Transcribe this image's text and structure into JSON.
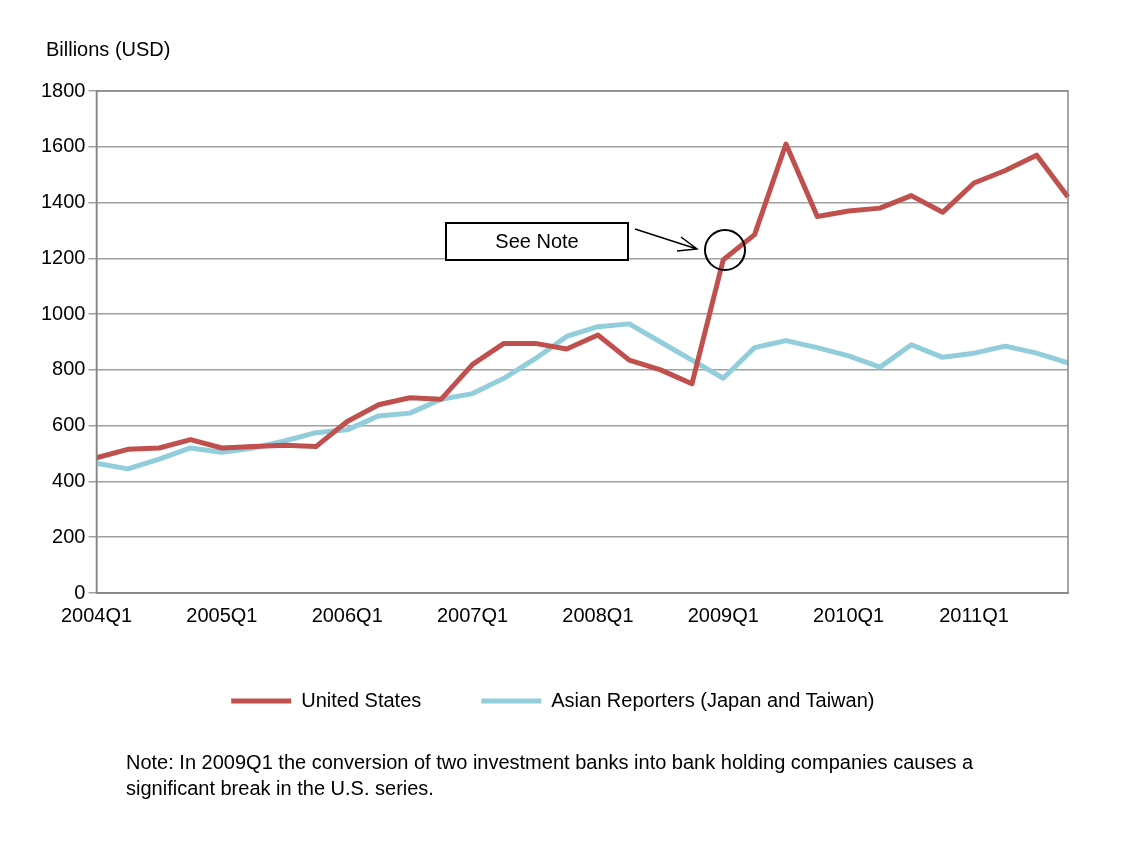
{
  "chart_data": {
    "type": "line",
    "ylabel": "Billions (USD)",
    "categories": [
      "2004Q1",
      null,
      null,
      null,
      "2005Q1",
      null,
      null,
      null,
      "2006Q1",
      null,
      null,
      null,
      "2007Q1",
      null,
      null,
      null,
      "2008Q1",
      null,
      null,
      null,
      "2009Q1",
      null,
      null,
      null,
      "2010Q1",
      null,
      null,
      null,
      "2011Q1",
      null,
      null,
      null
    ],
    "series": [
      {
        "name": "United States",
        "color": "#c0504d",
        "values": [
          485,
          515,
          520,
          550,
          520,
          525,
          530,
          525,
          615,
          675,
          700,
          695,
          820,
          895,
          895,
          875,
          925,
          835,
          800,
          750,
          1195,
          1285,
          1610,
          1350,
          1370,
          1380,
          1425,
          1365,
          1470,
          1515,
          1570,
          1420
        ]
      },
      {
        "name": "Asian Reporters (Japan and Taiwan)",
        "color": "#92cddc",
        "values": [
          465,
          445,
          480,
          520,
          505,
          520,
          545,
          575,
          585,
          635,
          645,
          695,
          715,
          770,
          840,
          920,
          955,
          965,
          900,
          835,
          770,
          880,
          905,
          880,
          850,
          810,
          890,
          845,
          860,
          885,
          860,
          825
        ]
      }
    ],
    "ylim": [
      0,
      1800
    ],
    "yticks": [
      0,
      200,
      400,
      600,
      800,
      1000,
      1200,
      1400,
      1600,
      1800
    ],
    "grid": "y",
    "legend": "bottom",
    "marker": "none",
    "line_style": "solid",
    "annotations": [
      "See Note",
      "Note: In 2009Q1 the conversion of two investment banks into bank holding companies causes a significant break in the U.S. series."
    ]
  }
}
